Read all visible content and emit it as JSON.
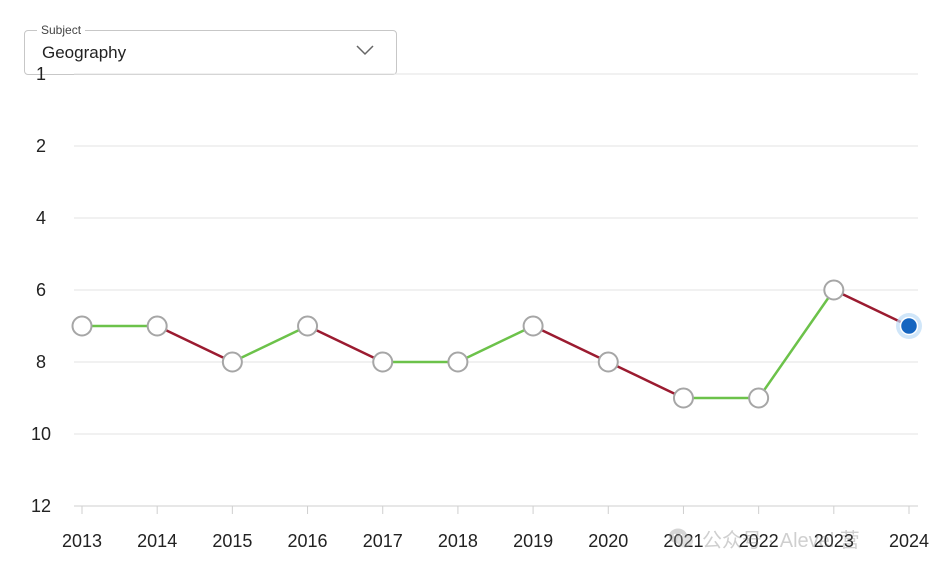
{
  "filter": {
    "label": "Subject",
    "selected": "Geography",
    "icon": "chevron-down-icon"
  },
  "watermark": {
    "text": "公众号 · Alevel 营",
    "icon": "wechat-icon"
  },
  "colors": {
    "improve": "#6cc24a",
    "decline": "#9b1b30",
    "marker_fill": "#ffffff",
    "marker_stroke": "#a6a6a6",
    "current_marker": "#1565c0",
    "current_glow": "#bcdcf7"
  },
  "chart_data": {
    "type": "line",
    "title": "",
    "xlabel": "",
    "ylabel": "",
    "x": [
      "2013",
      "2014",
      "2015",
      "2016",
      "2017",
      "2018",
      "2019",
      "2020",
      "2021",
      "2022",
      "2023",
      "2024"
    ],
    "series": [
      {
        "values": [
          7,
          7,
          8,
          7,
          8,
          8,
          7,
          8,
          9,
          9,
          6,
          7
        ]
      }
    ],
    "yticks": [
      1,
      2,
      4,
      6,
      8,
      10,
      12
    ],
    "ylim": [
      1,
      12
    ],
    "y_inverted": true,
    "grid": true,
    "segment_colors": "green when rank improves or stays the same, dark red when rank drops",
    "highlighted_point": "2024"
  }
}
